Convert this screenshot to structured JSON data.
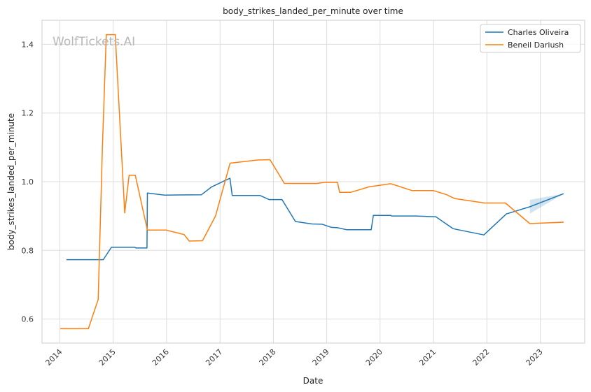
{
  "chart_data": {
    "type": "line",
    "title": "body_strikes_landed_per_minute over time",
    "xlabel": "Date",
    "ylabel": "body_strikes_landed_per_minute",
    "watermark": "WolfTickets.AI",
    "x_ticks": [
      "2014",
      "2015",
      "2016",
      "2017",
      "2018",
      "2019",
      "2020",
      "2021",
      "2022",
      "2023"
    ],
    "y_ticks": [
      "0.6",
      "0.8",
      "1.0",
      "1.2",
      "1.4"
    ],
    "xlim": [
      "2013-09-01",
      "2023-11-01"
    ],
    "ylim": [
      0.53,
      1.47
    ],
    "grid": true,
    "legend_position": "top-right",
    "colors": {
      "Charles Oliveira": "#1f77b4",
      "Beneil Dariush": "#ff7f0e"
    },
    "series": [
      {
        "name": "Charles Oliveira",
        "points": [
          [
            "2014-02-15",
            0.773
          ],
          [
            "2014-10-25",
            0.773
          ],
          [
            "2014-12-20",
            0.809
          ],
          [
            "2015-05-30",
            0.809
          ],
          [
            "2015-06-06",
            0.807
          ],
          [
            "2015-08-20",
            0.807
          ],
          [
            "2015-08-23",
            0.967
          ],
          [
            "2015-12-19",
            0.961
          ],
          [
            "2016-08-27",
            0.962
          ],
          [
            "2016-11-05",
            0.985
          ],
          [
            "2017-03-10",
            1.01
          ],
          [
            "2017-03-25",
            0.96
          ],
          [
            "2017-10-01",
            0.96
          ],
          [
            "2017-12-02",
            0.948
          ],
          [
            "2018-03-01",
            0.948
          ],
          [
            "2018-06-01",
            0.884
          ],
          [
            "2018-09-22",
            0.877
          ],
          [
            "2018-12-01",
            0.876
          ],
          [
            "2019-02-02",
            0.867
          ],
          [
            "2019-03-16",
            0.866
          ],
          [
            "2019-05-18",
            0.86
          ],
          [
            "2019-11-01",
            0.86
          ],
          [
            "2019-11-16",
            0.902
          ],
          [
            "2020-03-14",
            0.902
          ],
          [
            "2020-03-20",
            0.9
          ],
          [
            "2020-09-01",
            0.9
          ],
          [
            "2021-01-01",
            0.898
          ],
          [
            "2021-01-16",
            0.898
          ],
          [
            "2021-05-15",
            0.863
          ],
          [
            "2021-12-11",
            0.845
          ],
          [
            "2022-05-14",
            0.906
          ],
          [
            "2022-10-22",
            0.927
          ],
          [
            "2023-06-10",
            0.965
          ]
        ],
        "band": [
          [
            "2022-10-22",
            0.907,
            0.947
          ],
          [
            "2023-06-10",
            0.965,
            0.965
          ]
        ]
      },
      {
        "name": "Beneil Dariush",
        "points": [
          [
            "2014-01-04",
            0.572
          ],
          [
            "2014-07-15",
            0.572
          ],
          [
            "2014-09-20",
            0.657
          ],
          [
            "2014-10-20",
            1.11
          ],
          [
            "2014-11-15",
            1.428
          ],
          [
            "2015-01-15",
            1.428
          ],
          [
            "2015-03-21",
            0.909
          ],
          [
            "2015-04-20",
            1.019
          ],
          [
            "2015-06-01",
            1.019
          ],
          [
            "2015-08-23",
            0.859
          ],
          [
            "2015-12-31",
            0.859
          ],
          [
            "2016-04-30",
            0.846
          ],
          [
            "2016-06-04",
            0.827
          ],
          [
            "2016-09-03",
            0.828
          ],
          [
            "2016-12-01",
            0.9
          ],
          [
            "2017-03-11",
            1.054
          ],
          [
            "2017-09-15",
            1.063
          ],
          [
            "2017-12-09",
            1.064
          ],
          [
            "2018-03-17",
            0.995
          ],
          [
            "2018-10-27",
            0.995
          ],
          [
            "2018-12-15",
            0.998
          ],
          [
            "2019-03-16",
            0.998
          ],
          [
            "2019-03-30",
            0.969
          ],
          [
            "2019-06-15",
            0.969
          ],
          [
            "2019-10-18",
            0.985
          ],
          [
            "2020-03-14",
            0.994
          ],
          [
            "2020-08-08",
            0.974
          ],
          [
            "2020-12-31",
            0.974
          ],
          [
            "2021-04-01",
            0.962
          ],
          [
            "2021-05-25",
            0.951
          ],
          [
            "2021-12-15",
            0.938
          ],
          [
            "2022-05-07",
            0.938
          ],
          [
            "2022-10-22",
            0.878
          ],
          [
            "2023-06-10",
            0.882
          ]
        ],
        "band": [
          [
            "2022-10-22",
            0.878,
            0.878
          ],
          [
            "2023-06-10",
            0.88,
            0.885
          ]
        ]
      }
    ]
  }
}
